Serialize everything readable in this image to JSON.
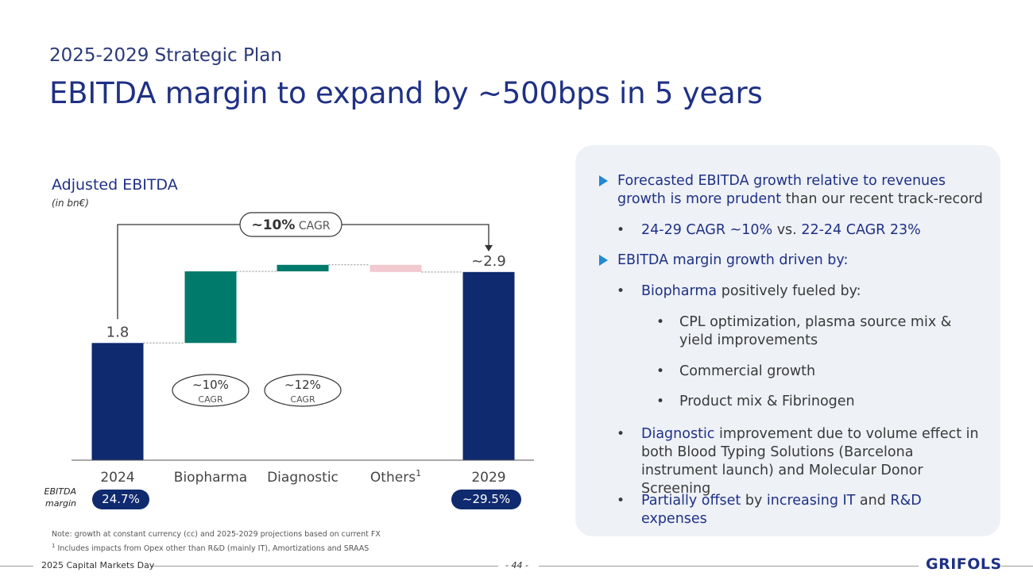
{
  "header": {
    "subtitle": "2025-2029 Strategic Plan",
    "title": "EBITDA margin to expand by ~500bps in 5 years"
  },
  "chart_data": {
    "type": "waterfall",
    "title": "Adjusted EBITDA",
    "unit": "(in bn€)",
    "categories": [
      "2024",
      "Biopharma",
      "Diagnostic",
      "Others",
      "2029"
    ],
    "category_superscripts": [
      "",
      "",
      "",
      "1",
      ""
    ],
    "bars": [
      {
        "name": "2024",
        "kind": "total",
        "start": 0,
        "end": 1.8,
        "label": "1.8",
        "color": "#0f2a6e"
      },
      {
        "name": "Biopharma",
        "kind": "delta",
        "start": 1.8,
        "end": 2.9,
        "label": "",
        "color": "#007a6b"
      },
      {
        "name": "Diagnostic",
        "kind": "delta",
        "start": 2.9,
        "end": 3.0,
        "label": "",
        "color": "#007a6b"
      },
      {
        "name": "Others",
        "kind": "delta",
        "start": 3.0,
        "end": 2.89,
        "label": "",
        "color": "#f2c9cf"
      },
      {
        "name": "2029",
        "kind": "total",
        "start": 0,
        "end": 2.89,
        "label": "~2.9",
        "color": "#0f2a6e"
      }
    ],
    "ylim": [
      0,
      4.35
    ],
    "cagr_total": {
      "value": "~10%",
      "text": "CAGR"
    },
    "cagr_segments": [
      {
        "category": "Biopharma",
        "value": "~10%",
        "text": "CAGR"
      },
      {
        "category": "Diagnostic",
        "value": "~12%",
        "text": "CAGR"
      }
    ]
  },
  "margin": {
    "label_line1": "EBITDA",
    "label_line2": "margin",
    "start": "24.7%",
    "end": "~29.5%"
  },
  "notes": {
    "line1": "Note: growth at constant currency (cc) and 2025-2029 projections based on current FX",
    "line2_sup": "1",
    "line2": " Includes impacts from Opex other than R&D (mainly IT), Amortizations and SRAAS"
  },
  "footer": {
    "event": "2025 Capital Markets Day",
    "page": "- 44 -",
    "logo": "GRIFOLS"
  },
  "panel": {
    "p1_hl": "Forecasted EBITDA growth relative to revenues growth is more prudent",
    "p1_rest": " than our recent track-record",
    "p1a_hl1": "24-29 CAGR ~10%",
    "p1a_mid": " vs. ",
    "p1a_hl2": "22-24 CAGR 23%",
    "p2_hl": "EBITDA margin growth driven by:",
    "p2a_hl": "Biopharma",
    "p2a_rest": " positively fueled by:",
    "p2a1": "CPL optimization, plasma source mix & yield improvements",
    "p2a2": "Commercial growth",
    "p2a3": "Product mix & Fibrinogen",
    "p2b_hl": "Diagnostic",
    "p2b_rest": " improvement due to volume effect in both Blood Typing Solutions (Barcelona instrument launch) and Molecular Donor Screening",
    "p2c_hl1": "Partially offset",
    "p2c_mid": " by ",
    "p2c_hl2": "increasing IT",
    "p2c_mid2": " and ",
    "p2c_hl3": "R&D expenses",
    "bullet": "•"
  },
  "colors": {
    "navy": "#0f2a6e",
    "teal": "#007a6b",
    "pink": "#f2c9cf",
    "accent": "#2389d1",
    "panel_bg": "#eef1f6"
  }
}
